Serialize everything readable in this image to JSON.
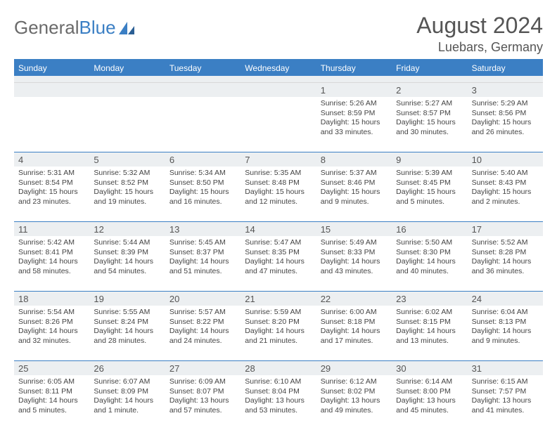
{
  "logo": {
    "text_gray": "General",
    "text_blue": "Blue"
  },
  "title": "August 2024",
  "location": "Luebars, Germany",
  "colors": {
    "accent": "#3b7fc4",
    "header_text": "#ffffff",
    "daynum_bg": "#eceff1",
    "body_text": "#444444",
    "title_text": "#555555"
  },
  "typography": {
    "title_fontsize": 32,
    "location_fontsize": 18,
    "header_fontsize": 12,
    "cell_fontsize": 10.5
  },
  "day_names": [
    "Sunday",
    "Monday",
    "Tuesday",
    "Wednesday",
    "Thursday",
    "Friday",
    "Saturday"
  ],
  "calendar": {
    "type": "table",
    "weeks": [
      [
        null,
        null,
        null,
        null,
        {
          "d": "1",
          "sr": "5:26 AM",
          "ss": "8:59 PM",
          "dl": "15 hours and 33 minutes."
        },
        {
          "d": "2",
          "sr": "5:27 AM",
          "ss": "8:57 PM",
          "dl": "15 hours and 30 minutes."
        },
        {
          "d": "3",
          "sr": "5:29 AM",
          "ss": "8:56 PM",
          "dl": "15 hours and 26 minutes."
        }
      ],
      [
        {
          "d": "4",
          "sr": "5:31 AM",
          "ss": "8:54 PM",
          "dl": "15 hours and 23 minutes."
        },
        {
          "d": "5",
          "sr": "5:32 AM",
          "ss": "8:52 PM",
          "dl": "15 hours and 19 minutes."
        },
        {
          "d": "6",
          "sr": "5:34 AM",
          "ss": "8:50 PM",
          "dl": "15 hours and 16 minutes."
        },
        {
          "d": "7",
          "sr": "5:35 AM",
          "ss": "8:48 PM",
          "dl": "15 hours and 12 minutes."
        },
        {
          "d": "8",
          "sr": "5:37 AM",
          "ss": "8:46 PM",
          "dl": "15 hours and 9 minutes."
        },
        {
          "d": "9",
          "sr": "5:39 AM",
          "ss": "8:45 PM",
          "dl": "15 hours and 5 minutes."
        },
        {
          "d": "10",
          "sr": "5:40 AM",
          "ss": "8:43 PM",
          "dl": "15 hours and 2 minutes."
        }
      ],
      [
        {
          "d": "11",
          "sr": "5:42 AM",
          "ss": "8:41 PM",
          "dl": "14 hours and 58 minutes."
        },
        {
          "d": "12",
          "sr": "5:44 AM",
          "ss": "8:39 PM",
          "dl": "14 hours and 54 minutes."
        },
        {
          "d": "13",
          "sr": "5:45 AM",
          "ss": "8:37 PM",
          "dl": "14 hours and 51 minutes."
        },
        {
          "d": "14",
          "sr": "5:47 AM",
          "ss": "8:35 PM",
          "dl": "14 hours and 47 minutes."
        },
        {
          "d": "15",
          "sr": "5:49 AM",
          "ss": "8:33 PM",
          "dl": "14 hours and 43 minutes."
        },
        {
          "d": "16",
          "sr": "5:50 AM",
          "ss": "8:30 PM",
          "dl": "14 hours and 40 minutes."
        },
        {
          "d": "17",
          "sr": "5:52 AM",
          "ss": "8:28 PM",
          "dl": "14 hours and 36 minutes."
        }
      ],
      [
        {
          "d": "18",
          "sr": "5:54 AM",
          "ss": "8:26 PM",
          "dl": "14 hours and 32 minutes."
        },
        {
          "d": "19",
          "sr": "5:55 AM",
          "ss": "8:24 PM",
          "dl": "14 hours and 28 minutes."
        },
        {
          "d": "20",
          "sr": "5:57 AM",
          "ss": "8:22 PM",
          "dl": "14 hours and 24 minutes."
        },
        {
          "d": "21",
          "sr": "5:59 AM",
          "ss": "8:20 PM",
          "dl": "14 hours and 21 minutes."
        },
        {
          "d": "22",
          "sr": "6:00 AM",
          "ss": "8:18 PM",
          "dl": "14 hours and 17 minutes."
        },
        {
          "d": "23",
          "sr": "6:02 AM",
          "ss": "8:15 PM",
          "dl": "14 hours and 13 minutes."
        },
        {
          "d": "24",
          "sr": "6:04 AM",
          "ss": "8:13 PM",
          "dl": "14 hours and 9 minutes."
        }
      ],
      [
        {
          "d": "25",
          "sr": "6:05 AM",
          "ss": "8:11 PM",
          "dl": "14 hours and 5 minutes."
        },
        {
          "d": "26",
          "sr": "6:07 AM",
          "ss": "8:09 PM",
          "dl": "14 hours and 1 minute."
        },
        {
          "d": "27",
          "sr": "6:09 AM",
          "ss": "8:07 PM",
          "dl": "13 hours and 57 minutes."
        },
        {
          "d": "28",
          "sr": "6:10 AM",
          "ss": "8:04 PM",
          "dl": "13 hours and 53 minutes."
        },
        {
          "d": "29",
          "sr": "6:12 AM",
          "ss": "8:02 PM",
          "dl": "13 hours and 49 minutes."
        },
        {
          "d": "30",
          "sr": "6:14 AM",
          "ss": "8:00 PM",
          "dl": "13 hours and 45 minutes."
        },
        {
          "d": "31",
          "sr": "6:15 AM",
          "ss": "7:57 PM",
          "dl": "13 hours and 41 minutes."
        }
      ]
    ]
  },
  "labels": {
    "sunrise": "Sunrise:",
    "sunset": "Sunset:",
    "daylight": "Daylight:"
  }
}
